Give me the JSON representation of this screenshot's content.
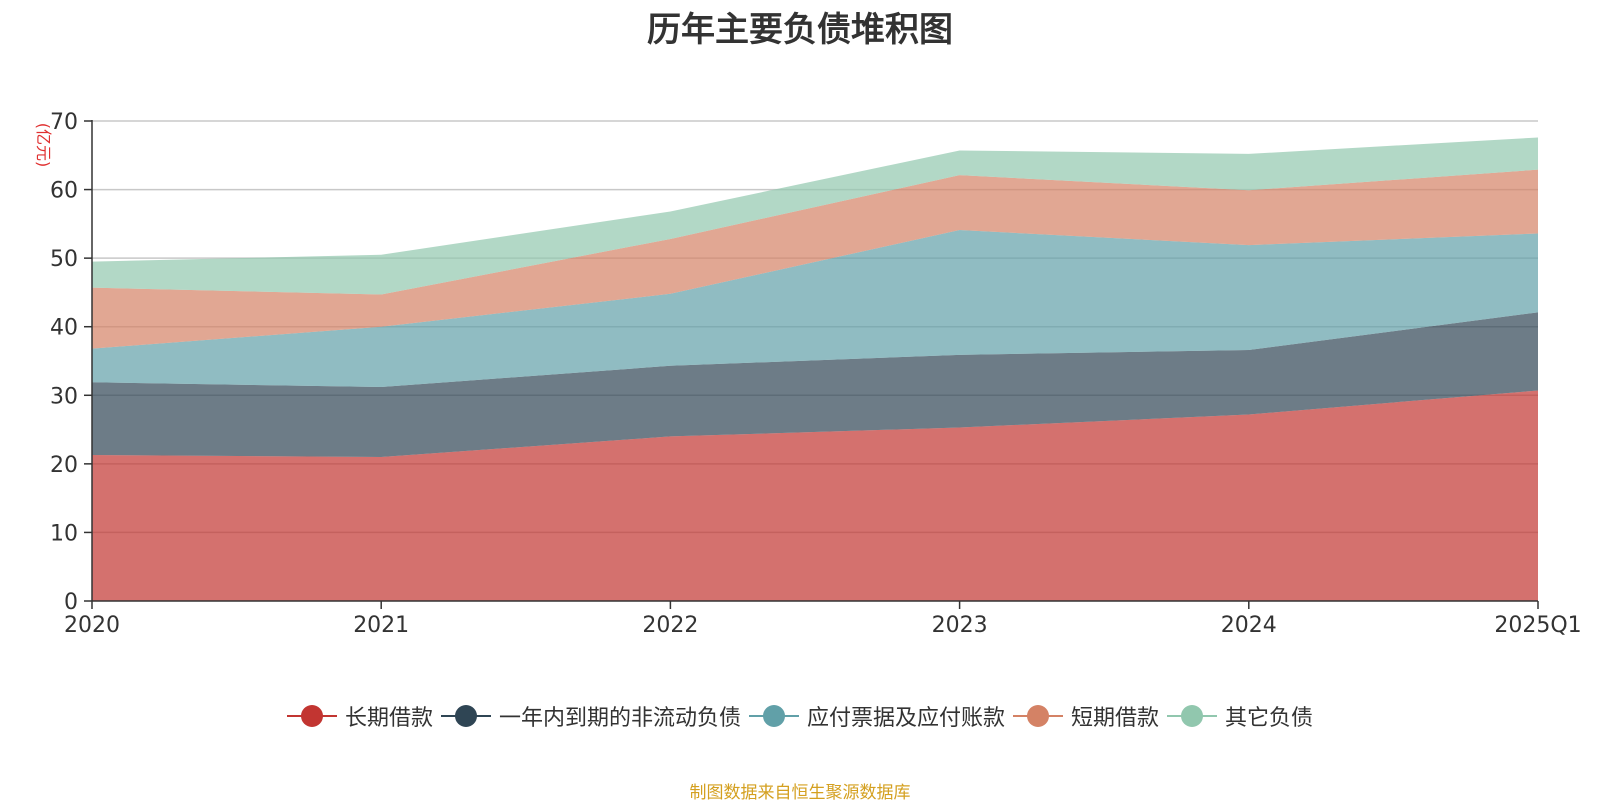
{
  "chart_data": {
    "type": "area",
    "stacked": true,
    "title": "历年主要负债堆积图",
    "ylabel": "(亿元)",
    "xlabel": "",
    "categories": [
      "2020",
      "2021",
      "2022",
      "2023",
      "2024",
      "2025Q1"
    ],
    "ylim": [
      0,
      70
    ],
    "yticks": [
      0,
      10,
      20,
      30,
      40,
      50,
      60,
      70
    ],
    "grid": true,
    "legend_position": "bottom",
    "series": [
      {
        "name": "长期借款",
        "color": "#c23531",
        "values": [
          21.3,
          21.0,
          24.0,
          25.3,
          27.2,
          30.7
        ]
      },
      {
        "name": "一年内到期的非流动负债",
        "color": "#2f4554",
        "values": [
          10.6,
          10.2,
          10.3,
          10.6,
          9.4,
          11.4
        ]
      },
      {
        "name": "应付票据及应付账款",
        "color": "#61a0a8",
        "values": [
          4.9,
          8.8,
          10.5,
          18.2,
          15.3,
          11.5
        ]
      },
      {
        "name": "短期借款",
        "color": "#d48265",
        "values": [
          8.9,
          4.7,
          8.0,
          8.0,
          8.0,
          9.3
        ]
      },
      {
        "name": "其它负债",
        "color": "#91c7ae",
        "values": [
          3.8,
          5.8,
          4.0,
          3.6,
          5.3,
          4.7
        ]
      }
    ],
    "source_note": "制图数据来自恒生聚源数据库"
  }
}
